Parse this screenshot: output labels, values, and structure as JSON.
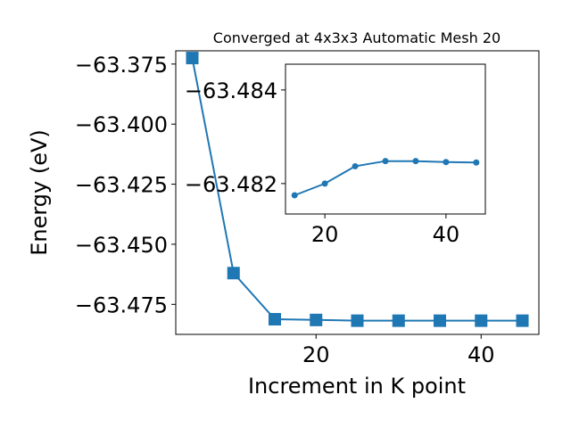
{
  "chart_data": [
    {
      "type": "line",
      "title": "Converged at 4x3x3 Automatic Mesh 20",
      "xlabel": "Increment in K point",
      "ylabel": "Energy (eV)",
      "xlim": [
        3,
        47
      ],
      "ylim": [
        -63.4875,
        -63.3695
      ],
      "xticks": [
        20,
        40
      ],
      "xtick_labels": [
        "20",
        "40"
      ],
      "yticks": [
        -63.375,
        -63.4,
        -63.425,
        -63.45,
        -63.475
      ],
      "ytick_labels": [
        "−63.375",
        "−63.400",
        "−63.425",
        "−63.450",
        "−63.475"
      ],
      "marker": "square",
      "grid": false,
      "series": [
        {
          "x": [
            5,
            10,
            15,
            20,
            25,
            30,
            35,
            40,
            45
          ],
          "y": [
            -63.3725,
            -63.462,
            -63.4812,
            -63.4815,
            -63.4818,
            -63.4818,
            -63.4818,
            -63.4818,
            -63.4818
          ]
        }
      ]
    },
    {
      "type": "line",
      "xlim": [
        13.5,
        46.5
      ],
      "ylim": [
        -63.48135,
        -63.48455
      ],
      "xticks": [
        20,
        40
      ],
      "xtick_labels": [
        "20",
        "40"
      ],
      "yticks": [
        -63.482,
        -63.484
      ],
      "ytick_labels": [
        "−63.482",
        "−63.484"
      ],
      "marker": "circle",
      "grid": false,
      "series": [
        {
          "x": [
            15,
            20,
            25,
            30,
            35,
            40,
            45
          ],
          "y": [
            -63.48175,
            -63.482,
            -63.48237,
            -63.48248,
            -63.48248,
            -63.48246,
            -63.48245
          ]
        }
      ]
    }
  ],
  "colors": {
    "series": "#1f77b4",
    "axes": "#000000",
    "background": "#ffffff"
  }
}
